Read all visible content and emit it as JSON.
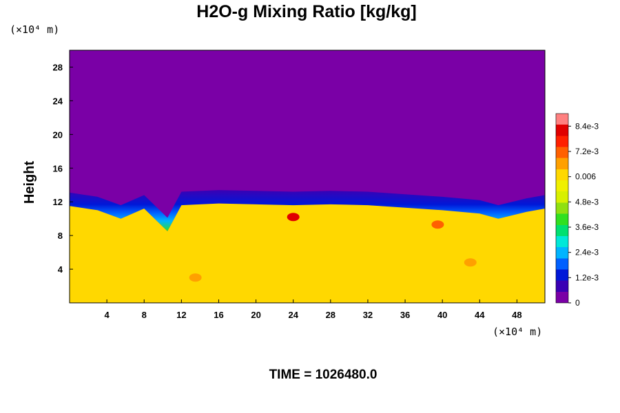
{
  "chart_data": {
    "type": "heatmap",
    "title": "H2O-g Mixing Ratio [kg/kg]",
    "ylabel": "Height",
    "y_unit": "(×10⁴ m)",
    "x_unit": "(×10⁴ m)",
    "xlim": [
      0,
      51
    ],
    "ylim": [
      0,
      30
    ],
    "x_ticks": [
      "4",
      "8",
      "12",
      "16",
      "20",
      "24",
      "28",
      "32",
      "36",
      "40",
      "44",
      "48"
    ],
    "y_ticks": [
      "4",
      "8",
      "12",
      "16",
      "20",
      "24",
      "28"
    ],
    "colorbar": {
      "range": [
        0,
        0.009
      ],
      "tick_labels": [
        "8.4e-3",
        "7.2e-3",
        "0.006",
        "4.8e-3",
        "3.6e-3",
        "2.4e-3",
        "1.2e-3",
        "0"
      ],
      "tick_values": [
        0.0084,
        0.0072,
        0.006,
        0.0048,
        0.0036,
        0.0024,
        0.0012,
        0
      ],
      "colors": [
        "#7a00a6",
        "#3a00b4",
        "#0018d8",
        "#0060ff",
        "#00b4ff",
        "#00e8d8",
        "#00e070",
        "#30e020",
        "#90e010",
        "#d8f000",
        "#f0f000",
        "#ffd800",
        "#ffa000",
        "#ff6000",
        "#ff2000",
        "#e00000",
        "#ff8080"
      ]
    },
    "fields": {
      "upper_value": 0,
      "lower_value": 0.0062,
      "moisture_top_profile": [
        {
          "x": 0,
          "y": 11.5
        },
        {
          "x": 3,
          "y": 11.0
        },
        {
          "x": 5.5,
          "y": 10.0
        },
        {
          "x": 8,
          "y": 11.2
        },
        {
          "x": 10.5,
          "y": 8.5
        },
        {
          "x": 12,
          "y": 11.6
        },
        {
          "x": 16,
          "y": 11.8
        },
        {
          "x": 20,
          "y": 11.7
        },
        {
          "x": 24,
          "y": 11.6
        },
        {
          "x": 28,
          "y": 11.7
        },
        {
          "x": 32,
          "y": 11.6
        },
        {
          "x": 36,
          "y": 11.3
        },
        {
          "x": 40,
          "y": 11.0
        },
        {
          "x": 44,
          "y": 10.6
        },
        {
          "x": 46,
          "y": 10.0
        },
        {
          "x": 49,
          "y": 10.8
        },
        {
          "x": 51,
          "y": 11.2
        }
      ],
      "moist_spots": [
        {
          "x": 24,
          "y": 10.2,
          "value": 0.0084
        },
        {
          "x": 39.5,
          "y": 9.3,
          "value": 0.0072
        },
        {
          "x": 43,
          "y": 4.8,
          "value": 0.0066
        },
        {
          "x": 13.5,
          "y": 3.0,
          "value": 0.0066
        }
      ]
    }
  },
  "footer": {
    "time_label": "TIME = 1026480.0"
  }
}
